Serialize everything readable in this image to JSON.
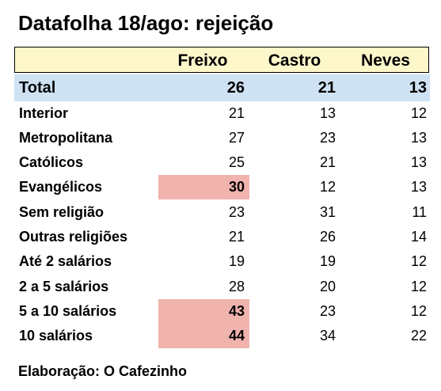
{
  "title": "Datafolha 18/ago: rejeição",
  "highlight_color": "#f0b3ae",
  "header_color": "#fef7ca",
  "total_color": "#cfe2f3",
  "footer": "Elaboração: O Cafezinho",
  "chart_data": {
    "type": "table",
    "title": "Datafolha 18/ago: rejeição",
    "columns": [
      "Freixo",
      "Castro",
      "Neves"
    ],
    "rows": [
      {
        "label": "Total",
        "values": [
          26,
          21,
          13
        ],
        "highlight": [
          false,
          false,
          false
        ],
        "bold": true
      },
      {
        "label": "Interior",
        "values": [
          21,
          13,
          12
        ],
        "highlight": [
          false,
          false,
          false
        ]
      },
      {
        "label": "Metropolitana",
        "values": [
          27,
          23,
          13
        ],
        "highlight": [
          false,
          false,
          false
        ]
      },
      {
        "label": "Católicos",
        "values": [
          25,
          21,
          13
        ],
        "highlight": [
          false,
          false,
          false
        ]
      },
      {
        "label": "Evangélicos",
        "values": [
          30,
          12,
          13
        ],
        "highlight": [
          true,
          false,
          false
        ]
      },
      {
        "label": "Sem religião",
        "values": [
          23,
          31,
          11
        ],
        "highlight": [
          false,
          false,
          false
        ]
      },
      {
        "label": "Outras religiões",
        "values": [
          21,
          26,
          14
        ],
        "highlight": [
          false,
          false,
          false
        ]
      },
      {
        "label": "Até 2 salários",
        "values": [
          19,
          19,
          12
        ],
        "highlight": [
          false,
          false,
          false
        ]
      },
      {
        "label": "2 a 5 salários",
        "values": [
          28,
          20,
          12
        ],
        "highlight": [
          false,
          false,
          false
        ]
      },
      {
        "label": "5 a 10 salários",
        "values": [
          43,
          23,
          12
        ],
        "highlight": [
          true,
          false,
          false
        ]
      },
      {
        "label": "10 salários",
        "values": [
          44,
          34,
          22
        ],
        "highlight": [
          true,
          false,
          false
        ]
      }
    ]
  }
}
